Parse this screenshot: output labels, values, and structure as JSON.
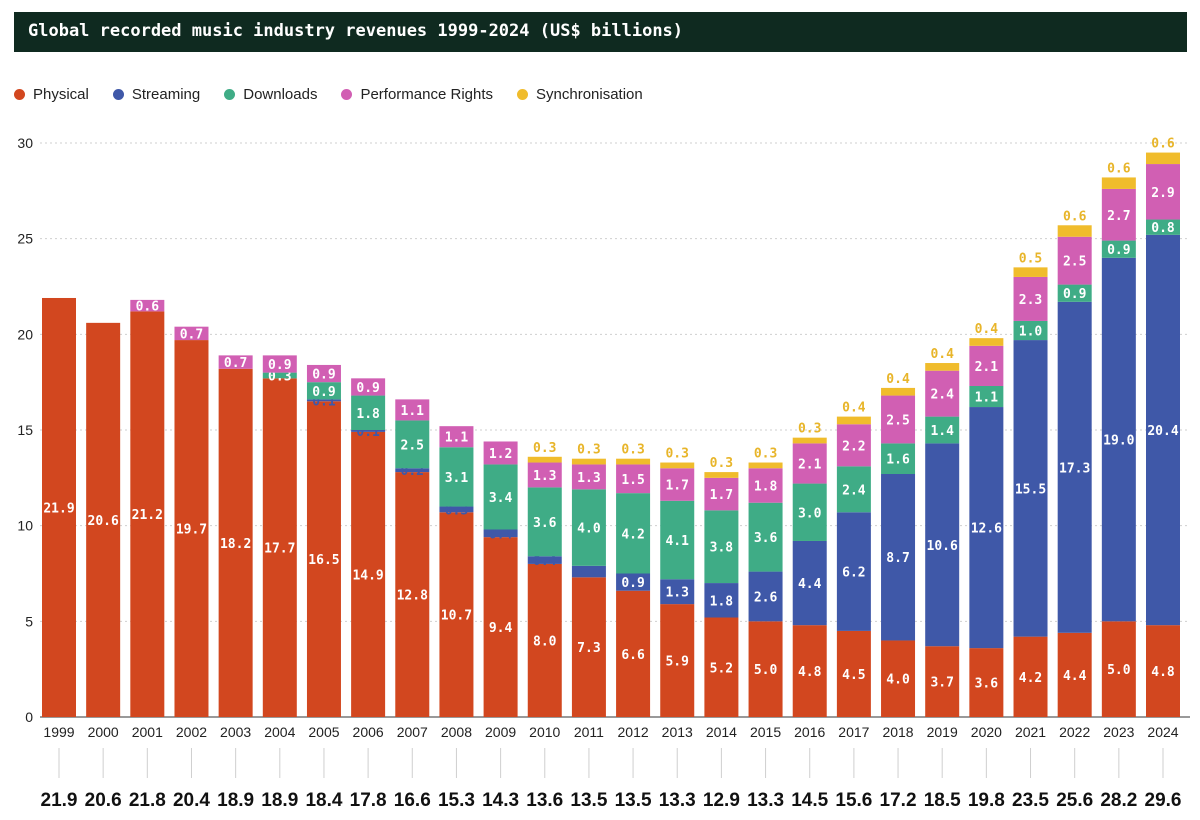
{
  "chart_data": {
    "type": "bar",
    "stacked": true,
    "title": "Global recorded music industry revenues 1999-2024 (US$ billions)",
    "xlabel": "",
    "ylabel": "",
    "ylim": [
      0,
      30
    ],
    "yticks": [
      0,
      5,
      10,
      15,
      20,
      25,
      30
    ],
    "grid": true,
    "legend_position": "top-left",
    "categories": [
      "1999",
      "2000",
      "2001",
      "2002",
      "2003",
      "2004",
      "2005",
      "2006",
      "2007",
      "2008",
      "2009",
      "2010",
      "2011",
      "2012",
      "2013",
      "2014",
      "2015",
      "2016",
      "2017",
      "2018",
      "2019",
      "2020",
      "2021",
      "2022",
      "2023",
      "2024"
    ],
    "series": [
      {
        "name": "Physical",
        "color": "#d2471f",
        "values": [
          21.9,
          20.6,
          21.2,
          19.7,
          18.2,
          17.7,
          16.5,
          14.9,
          12.8,
          10.7,
          9.4,
          8.0,
          7.3,
          6.6,
          5.9,
          5.2,
          5.0,
          4.8,
          4.5,
          4.0,
          3.7,
          3.6,
          4.2,
          4.4,
          5.0,
          4.8
        ]
      },
      {
        "name": "Streaming",
        "color": "#3f58a8",
        "values": [
          null,
          null,
          null,
          null,
          null,
          null,
          0.1,
          0.1,
          0.2,
          0.3,
          0.4,
          0.4,
          0.6,
          0.9,
          1.3,
          1.8,
          2.6,
          4.4,
          6.2,
          8.7,
          10.6,
          12.6,
          15.5,
          17.3,
          19.0,
          20.4
        ]
      },
      {
        "name": "Downloads",
        "color": "#3fac86",
        "values": [
          null,
          null,
          null,
          null,
          null,
          0.3,
          0.9,
          1.8,
          2.5,
          3.1,
          3.4,
          3.6,
          4.0,
          4.2,
          4.1,
          3.8,
          3.6,
          3.0,
          2.4,
          1.6,
          1.4,
          1.1,
          1.0,
          0.9,
          0.9,
          0.8
        ]
      },
      {
        "name": "Performance Rights",
        "color": "#d15fb3",
        "values": [
          null,
          null,
          0.6,
          0.7,
          0.7,
          0.9,
          0.9,
          0.9,
          1.1,
          1.1,
          1.2,
          1.3,
          1.3,
          1.5,
          1.7,
          1.7,
          1.8,
          2.1,
          2.2,
          2.5,
          2.4,
          2.1,
          2.3,
          2.5,
          2.7,
          2.9
        ]
      },
      {
        "name": "Synchronisation",
        "color": "#f0bc2c",
        "values": [
          null,
          null,
          null,
          null,
          null,
          null,
          null,
          null,
          null,
          null,
          null,
          0.3,
          0.3,
          0.3,
          0.3,
          0.3,
          0.3,
          0.3,
          0.4,
          0.4,
          0.4,
          0.4,
          0.5,
          0.6,
          0.6,
          0.6
        ]
      }
    ],
    "labels_above": [
      null,
      null,
      null,
      null,
      null,
      null,
      null,
      null,
      null,
      null,
      null,
      "0.3",
      "0.3",
      "0.3",
      "0.3",
      "0.3",
      "0.3",
      "0.3",
      "0.4",
      "0.4",
      "0.4",
      "0.4",
      "0.5",
      "0.6",
      "0.6",
      "0.6"
    ],
    "label_overrides": {
      "4": {
        "1": "0.0"
      }
    },
    "totals": [
      "21.9",
      "20.6",
      "21.8",
      "20.4",
      "18.9",
      "18.9",
      "18.4",
      "17.8",
      "16.6",
      "15.3",
      "14.3",
      "13.6",
      "13.5",
      "13.5",
      "13.3",
      "12.9",
      "13.3",
      "14.5",
      "15.6",
      "17.2",
      "18.5",
      "19.8",
      "23.5",
      "25.6",
      "28.2",
      "29.6"
    ]
  }
}
